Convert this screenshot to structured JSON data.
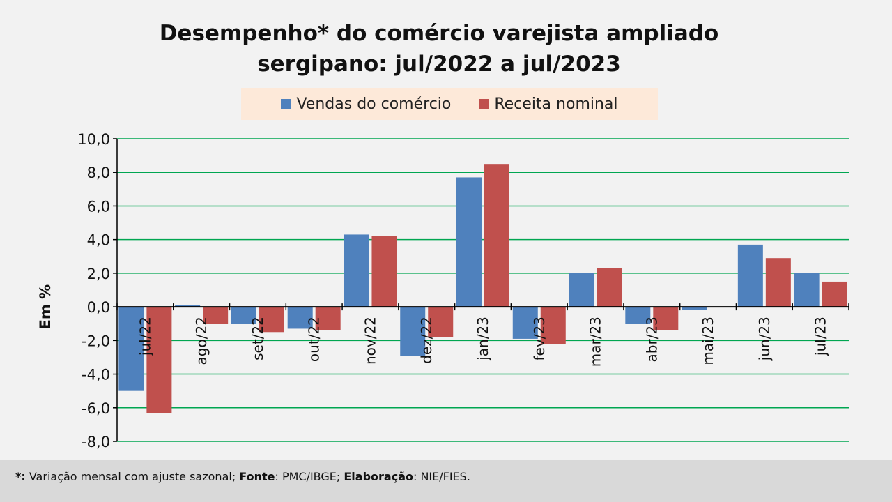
{
  "title_line1": "Desempenho* do comércio varejista ampliado",
  "title_line2": "sergipano: jul/2022 a jul/2023",
  "footer": {
    "marker": "*:",
    "text1": " Variação mensal com ajuste sazonal; ",
    "fonte_label": "Fonte",
    "text2": ": PMC/IBGE; ",
    "elab_label": "Elaboração",
    "text3": ": NIE/FIES."
  },
  "chart_data": {
    "type": "bar",
    "title": "Desempenho* do comércio varejista ampliado sergipano: jul/2022 a jul/2023",
    "xlabel": "",
    "ylabel": "Em %",
    "ylim": [
      -8,
      10
    ],
    "yticks": [
      10,
      8,
      6,
      4,
      2,
      0,
      -2,
      -4,
      -6,
      -8
    ],
    "ytick_labels": [
      "10,0",
      "8,0",
      "6,0",
      "4,0",
      "2,0",
      "0,0",
      "-2,0",
      "-4,0",
      "-6,0",
      "-8,0"
    ],
    "grid": true,
    "legend_position": "top-center",
    "categories": [
      "jul/22",
      "ago/22",
      "set/22",
      "out/22",
      "nov/22",
      "dez/22",
      "jan/23",
      "fev/23",
      "mar/23",
      "abr/23",
      "mai/23",
      "jun/23",
      "jul/23"
    ],
    "series": [
      {
        "name": "Vendas do comércio",
        "color": "#4f81bd",
        "values": [
          -5.0,
          0.1,
          -1.0,
          -1.3,
          4.3,
          -2.9,
          7.7,
          -1.9,
          2.0,
          -1.0,
          -0.2,
          3.7,
          2.0
        ]
      },
      {
        "name": "Receita nominal",
        "color": "#c0504d",
        "values": [
          -6.3,
          -1.0,
          -1.5,
          -1.4,
          4.2,
          -1.8,
          8.5,
          -2.2,
          2.3,
          -1.4,
          0.0,
          2.9,
          1.5
        ]
      }
    ]
  }
}
